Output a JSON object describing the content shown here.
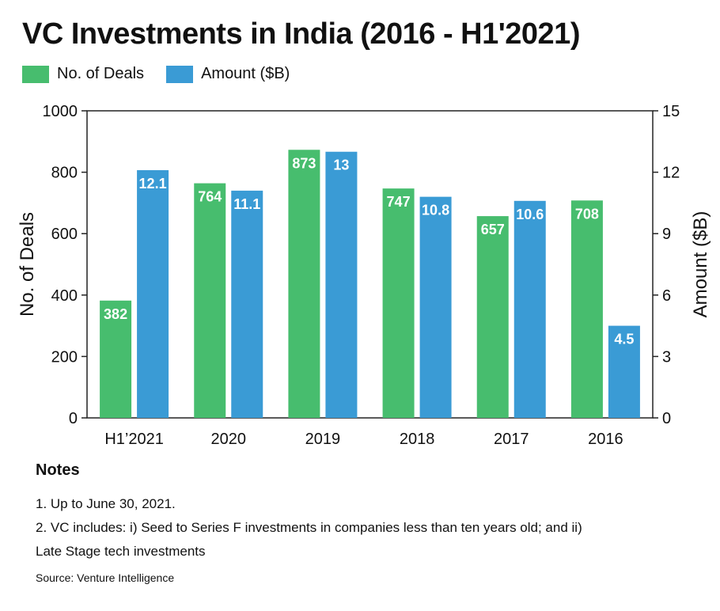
{
  "colors": {
    "deals": "#47bd6e",
    "amount": "#3a9bd5"
  },
  "notes": {
    "title": "Notes",
    "lines": [
      "1. Up to June 30, 2021.",
      "2. VC includes: i) Seed to Series F investments in companies less than ten years old; and ii)",
      "Late Stage tech investments"
    ]
  },
  "source": "Source: Venture Intelligence",
  "chart_data": {
    "type": "bar",
    "title": "VC Investments in India (2016 - H1'2021)",
    "categories": [
      "H1’2021",
      "2020",
      "2019",
      "2018",
      "2017",
      "2016"
    ],
    "series": [
      {
        "name": "No. of Deals",
        "axis": "left",
        "color": "#47bd6e",
        "values": [
          382,
          764,
          873,
          747,
          657,
          708
        ],
        "labels": [
          "382",
          "764",
          "873",
          "747",
          "657",
          "708"
        ]
      },
      {
        "name": "Amount ($B)",
        "axis": "right",
        "color": "#3a9bd5",
        "values": [
          12.1,
          11.1,
          13,
          10.8,
          10.6,
          4.5
        ],
        "labels": [
          "12.1",
          "11.1",
          "13",
          "10.8",
          "10.6",
          "4.5"
        ]
      }
    ],
    "ylabel": "No. of Deals",
    "ylim": [
      0,
      1000
    ],
    "yticks": [
      0,
      200,
      400,
      600,
      800,
      1000
    ],
    "y2label": "Amount ($B)",
    "y2lim": [
      0,
      15
    ],
    "y2ticks": [
      0,
      3,
      6,
      9,
      12,
      15
    ],
    "grid": false,
    "legend": "top-left"
  }
}
